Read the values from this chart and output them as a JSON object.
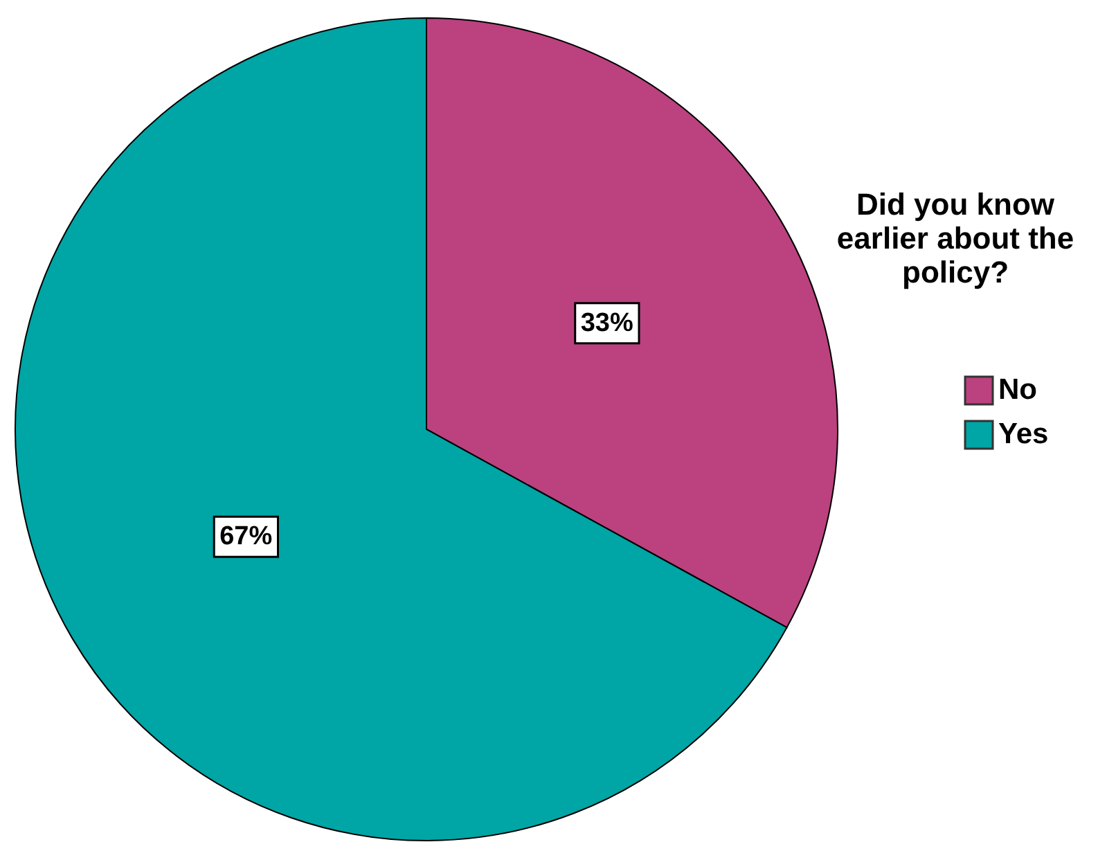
{
  "chart_data": {
    "type": "pie",
    "legend_title": "Did you know earlier about the policy?",
    "categories": [
      "No",
      "Yes"
    ],
    "values": [
      33,
      67
    ],
    "colors": [
      "#bb417f",
      "#00a5a5"
    ],
    "value_labels": [
      "33%",
      "67%"
    ],
    "legend": "right"
  }
}
